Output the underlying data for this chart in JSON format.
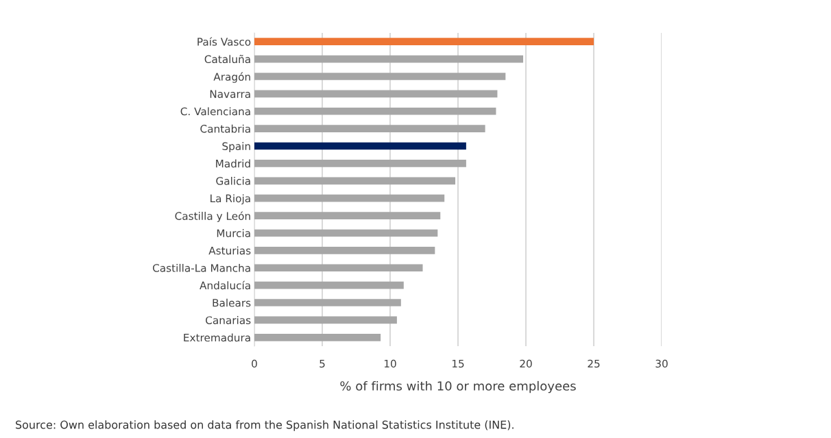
{
  "chart_data": {
    "type": "bar",
    "orientation": "horizontal",
    "xlabel": "% of firms with 10 or more employees",
    "categories": [
      "País Vasco",
      "Cataluña",
      "Aragón",
      "Navarra",
      "C. Valenciana",
      "Cantabria",
      "Spain",
      "Madrid",
      "Galicia",
      "La Rioja",
      "Castilla y León",
      "Murcia",
      "Asturias",
      "Castilla-La Mancha",
      "Andalucía",
      "Balears",
      "Canarias",
      "Extremadura"
    ],
    "values": [
      25.0,
      19.8,
      18.5,
      17.9,
      17.8,
      17.0,
      15.6,
      15.6,
      14.8,
      14.0,
      13.7,
      13.5,
      13.3,
      12.4,
      11.0,
      10.8,
      10.5,
      9.3
    ],
    "colors": [
      "#ed7433",
      "#a6a6a6",
      "#a6a6a6",
      "#a6a6a6",
      "#a6a6a6",
      "#a6a6a6",
      "#002060",
      "#a6a6a6",
      "#a6a6a6",
      "#a6a6a6",
      "#a6a6a6",
      "#a6a6a6",
      "#a6a6a6",
      "#a6a6a6",
      "#a6a6a6",
      "#a6a6a6",
      "#a6a6a6",
      "#a6a6a6"
    ],
    "xlim": [
      0,
      30
    ],
    "xticks": [
      0,
      5,
      10,
      15,
      20,
      25,
      30
    ],
    "grid": "x",
    "annotations": [
      "Source: Own elaboration based on data from the Spanish National Statistics Institute (INE)."
    ]
  }
}
